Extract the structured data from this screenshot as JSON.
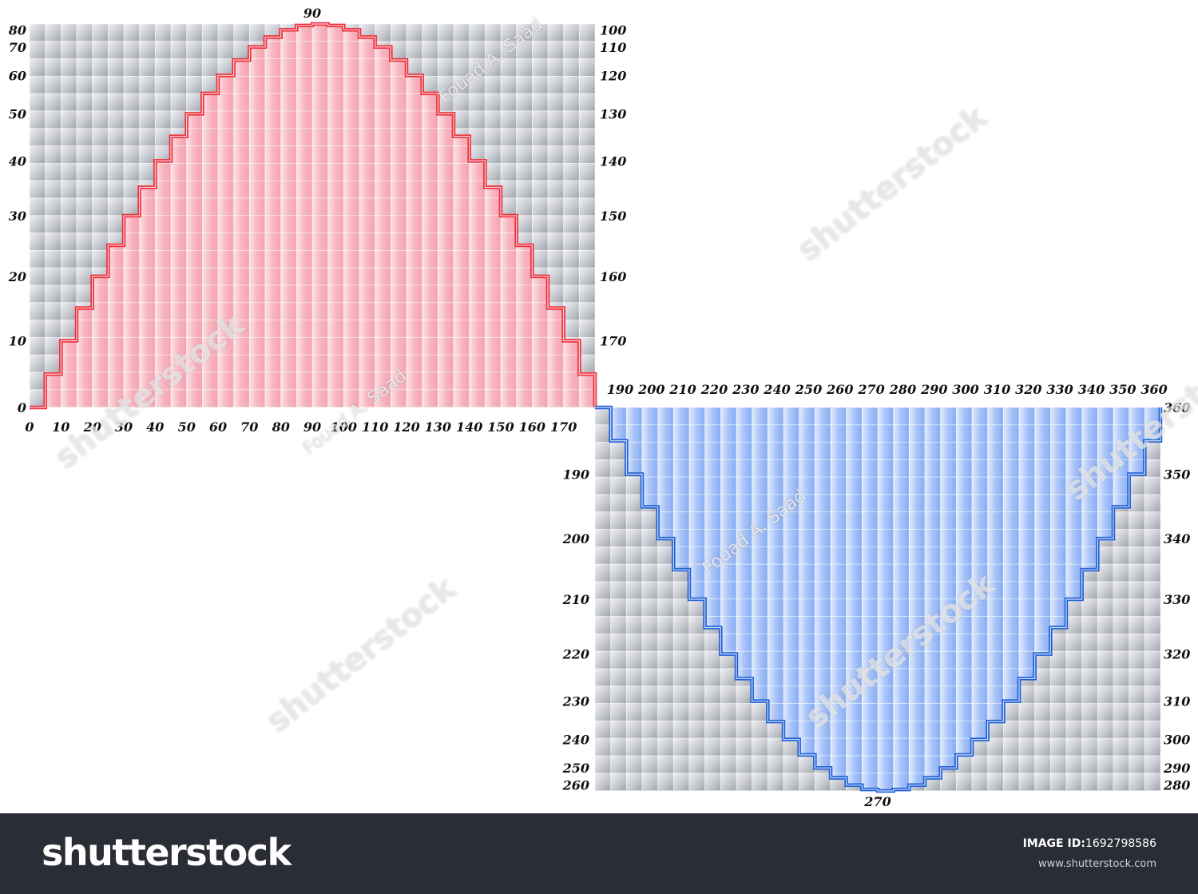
{
  "chart_data": {
    "type": "line",
    "title": "",
    "xlabel": "",
    "ylabel": "",
    "step_deg": 5,
    "panels": [
      {
        "name": "positive-half",
        "x_range": [
          0,
          180
        ],
        "x": [
          0,
          5,
          10,
          15,
          20,
          25,
          30,
          35,
          40,
          45,
          50,
          55,
          60,
          65,
          70,
          75,
          80,
          85,
          90,
          95,
          100,
          105,
          110,
          115,
          120,
          125,
          130,
          135,
          140,
          145,
          150,
          155,
          160,
          165,
          170,
          175,
          180
        ],
        "y": [
          0,
          0.087,
          0.174,
          0.259,
          0.342,
          0.423,
          0.5,
          0.574,
          0.643,
          0.707,
          0.766,
          0.819,
          0.866,
          0.906,
          0.94,
          0.966,
          0.985,
          0.996,
          1,
          0.996,
          0.985,
          0.966,
          0.94,
          0.906,
          0.866,
          0.819,
          0.766,
          0.707,
          0.643,
          0.574,
          0.5,
          0.423,
          0.342,
          0.259,
          0.174,
          0.087,
          0
        ],
        "y_range": [
          0,
          1
        ],
        "color": "#ee2d3a",
        "fill": "#f7a6b2",
        "bottom_ticks": [
          "0",
          "10",
          "20",
          "30",
          "40",
          "50",
          "60",
          "70",
          "80",
          "90",
          "100",
          "110",
          "120",
          "130",
          "140",
          "150",
          "160",
          "170"
        ],
        "left_ticks": [
          "0",
          "10",
          "20",
          "30",
          "40",
          "50",
          "60",
          "70",
          "80"
        ],
        "right_ticks": [
          "100",
          "110",
          "120",
          "130",
          "140",
          "150",
          "160",
          "170"
        ],
        "peak_label": "90"
      },
      {
        "name": "negative-half",
        "x_range": [
          180,
          360
        ],
        "x": [
          180,
          185,
          190,
          195,
          200,
          205,
          210,
          215,
          220,
          225,
          230,
          235,
          240,
          245,
          250,
          255,
          260,
          265,
          270,
          275,
          280,
          285,
          290,
          295,
          300,
          305,
          310,
          315,
          320,
          325,
          330,
          335,
          340,
          345,
          350,
          355,
          360
        ],
        "y": [
          0,
          -0.087,
          -0.174,
          -0.259,
          -0.342,
          -0.423,
          -0.5,
          -0.574,
          -0.643,
          -0.707,
          -0.766,
          -0.819,
          -0.866,
          -0.906,
          -0.94,
          -0.966,
          -0.985,
          -0.996,
          -1,
          -0.996,
          -0.985,
          -0.966,
          -0.94,
          -0.906,
          -0.866,
          -0.819,
          -0.766,
          -0.707,
          -0.643,
          -0.574,
          -0.5,
          -0.423,
          -0.342,
          -0.259,
          -0.174,
          -0.087,
          0
        ],
        "y_range": [
          -1,
          0
        ],
        "color": "#1d5fd6",
        "fill": "#9dbdf7",
        "top_ticks": [
          "190",
          "200",
          "210",
          "220",
          "230",
          "240",
          "250",
          "260",
          "270",
          "280",
          "290",
          "300",
          "310",
          "320",
          "330",
          "340",
          "350",
          "360"
        ],
        "left_ticks": [
          "190",
          "200",
          "210",
          "220",
          "230",
          "240",
          "250",
          "260"
        ],
        "right_ticks": [
          "360",
          "350",
          "340",
          "330",
          "320",
          "310",
          "300",
          "290",
          "280"
        ],
        "trough_label": "270"
      }
    ],
    "grid": true
  },
  "watermark": {
    "brand": "shutterstock",
    "author": "Fouad A. Saad"
  },
  "footer": {
    "brand": "shutterstock",
    "image_id_label": "IMAGE ID:",
    "image_id": "1692798586",
    "site": "www.shutterstock.com"
  },
  "colors": {
    "footer_bg": "#2a2d35",
    "grid_bg": "#c9cbd2"
  }
}
